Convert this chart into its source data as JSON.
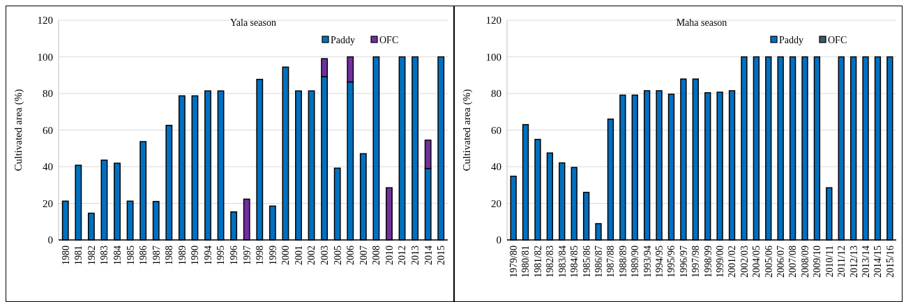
{
  "chart_data": [
    {
      "type": "bar",
      "title": "Yala season",
      "ylabel": "Cultivated area (%)",
      "stacked": true,
      "legend": "top right",
      "grid": "y",
      "categories": [
        "1980",
        "1981",
        "1982",
        "1983",
        "1984",
        "1985",
        "1986",
        "1987",
        "1988",
        "1989",
        "1990",
        "1994",
        "1995",
        "1996",
        "1997",
        "1998",
        "1999",
        "2000",
        "2001",
        "2002",
        "2003",
        "2005",
        "2006",
        "2007",
        "2008",
        "2010",
        "2012",
        "2013",
        "2014",
        "2015"
      ],
      "ylim": [
        0,
        120
      ],
      "yticks": [
        0,
        20,
        40,
        60,
        80,
        100,
        120
      ],
      "series": [
        {
          "name": "Paddy",
          "color": "#0070c0",
          "values": [
            21.2,
            40.8,
            14.6,
            43.6,
            41.9,
            21.2,
            53.7,
            21,
            62.6,
            78.7,
            78.7,
            81.4,
            81.4,
            15.3,
            null,
            87.7,
            18.5,
            94.4,
            81.4,
            81.4,
            89.2,
            39.2,
            86.3,
            47.1,
            100,
            null,
            100,
            100,
            39,
            100
          ]
        },
        {
          "name": "OFC",
          "color": "#7030a0",
          "values": [
            null,
            null,
            null,
            null,
            null,
            null,
            null,
            null,
            null,
            null,
            null,
            null,
            null,
            null,
            22.3,
            null,
            null,
            null,
            null,
            null,
            9.8,
            null,
            13.7,
            null,
            null,
            28.5,
            null,
            null,
            15.5,
            null
          ]
        }
      ]
    },
    {
      "type": "bar",
      "title": "Maha season",
      "ylabel": "Cultivated area (%)",
      "stacked": true,
      "legend": "top right",
      "grid": "y",
      "categories": [
        "1979/80",
        "1980/81",
        "1981/82",
        "1982/83",
        "1983/84",
        "1984/85",
        "1985/86",
        "1986/87",
        "1987/88",
        "1988/89",
        "1989/90",
        "1993/94",
        "1994/95",
        "1995/96",
        "1996/97",
        "1997/98",
        "1998/99",
        "1999/00",
        "2001/02",
        "2002/03",
        "2004/05",
        "2005/06",
        "2006/07",
        "2007/08",
        "2008/09",
        "2009/10",
        "2010/11",
        "2011/12",
        "2012/13",
        "2013/14",
        "2014/15",
        "2015/16"
      ],
      "ylim": [
        0,
        120
      ],
      "yticks": [
        0,
        20,
        40,
        60,
        80,
        100,
        120
      ],
      "series": [
        {
          "name": "Paddy",
          "color": "#0070c0",
          "values": [
            34.8,
            63,
            54.9,
            47.5,
            42.1,
            39.6,
            26,
            8.9,
            66,
            79.1,
            79.1,
            81.5,
            81.5,
            79.6,
            87.9,
            87.9,
            80.4,
            80.7,
            81.5,
            100,
            100,
            100,
            100,
            100,
            100,
            100,
            28.5,
            100,
            100,
            100,
            100,
            100
          ]
        },
        {
          "name": "OFC",
          "color": "#3b5a6b",
          "values": [
            null,
            null,
            null,
            null,
            null,
            null,
            null,
            null,
            null,
            null,
            null,
            null,
            null,
            null,
            null,
            null,
            null,
            null,
            null,
            null,
            null,
            null,
            null,
            null,
            null,
            null,
            null,
            null,
            null,
            null,
            null,
            null
          ]
        }
      ]
    }
  ]
}
